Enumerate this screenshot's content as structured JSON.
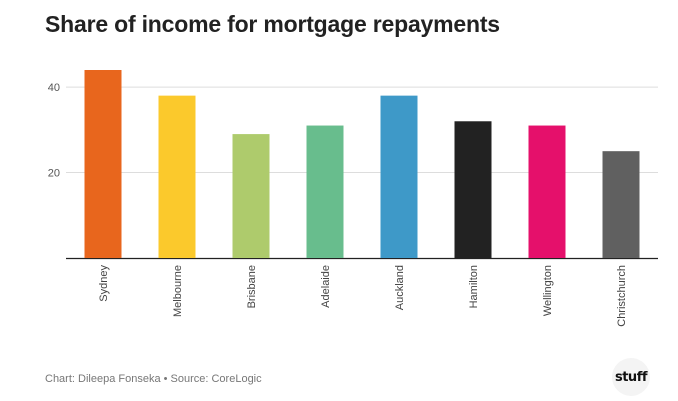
{
  "title": "Share of income for mortgage repayments",
  "footer": "Chart: Dileepa Fonseka • Source: CoreLogic",
  "logo_text": "stuff",
  "chart_data": {
    "type": "bar",
    "title": "Share of income for mortgage repayments",
    "xlabel": "",
    "ylabel": "",
    "categories": [
      "Sydney",
      "Melbourne",
      "Brisbane",
      "Adelaide",
      "Auckland",
      "Hamilton",
      "Wellington",
      "Christchurch"
    ],
    "values": [
      44,
      38,
      29,
      31,
      38,
      32,
      31,
      25
    ],
    "colors": [
      "#e8661d",
      "#fbc92c",
      "#aecb6c",
      "#68bd8d",
      "#3e99c8",
      "#222222",
      "#e5106b",
      "#606060"
    ],
    "ylim": [
      0,
      44
    ],
    "yticks": [
      20,
      40
    ],
    "grid": true,
    "legend": "none"
  }
}
